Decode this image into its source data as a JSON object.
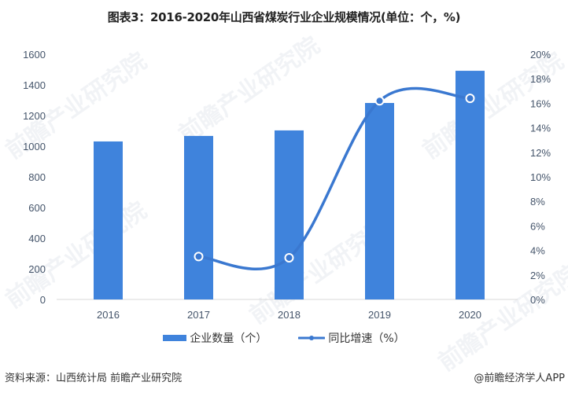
{
  "title": "图表3：2016-2020年山西省煤炭行业企业规模情况(单位：个，%)",
  "legend": {
    "bar_label": "企业数量（个）",
    "line_label": "同比增速（%）"
  },
  "footer": {
    "source": "资料来源：山西统计局 前瞻产业研究院",
    "credit": "@前瞻经济学人APP"
  },
  "watermark": "前瞻产业研究院",
  "colors": {
    "bar": "#3f83dc",
    "line": "#3a78d0",
    "axis_text": "#44546a",
    "baseline": "#d9d9d9"
  },
  "axes": {
    "left_ticks": [
      "0",
      "200",
      "400",
      "600",
      "800",
      "1000",
      "1200",
      "1400",
      "1600"
    ],
    "right_ticks": [
      "0%",
      "2%",
      "4%",
      "6%",
      "8%",
      "10%",
      "12%",
      "14%",
      "16%",
      "18%",
      "20%"
    ],
    "x_ticks": [
      "2016",
      "2017",
      "2018",
      "2019",
      "2020"
    ]
  },
  "chart_data": {
    "type": "bar",
    "title": "图表3：2016-2020年山西省煤炭行业企业规模情况(单位：个，%)",
    "categories": [
      "2016",
      "2017",
      "2018",
      "2019",
      "2020"
    ],
    "series": [
      {
        "name": "企业数量（个）",
        "type": "bar",
        "axis": "left",
        "values": [
          1031,
          1067,
          1103,
          1282,
          1492
        ]
      },
      {
        "name": "同比增速（%）",
        "type": "line",
        "axis": "right",
        "smooth": true,
        "values": [
          null,
          3.5,
          3.4,
          16.2,
          16.4
        ]
      }
    ],
    "xlabel": "",
    "ylabel_left": "",
    "ylabel_right": "",
    "ylim_left": [
      0,
      1600
    ],
    "ylim_right": [
      0,
      20
    ],
    "grid": false,
    "legend_position": "bottom"
  }
}
